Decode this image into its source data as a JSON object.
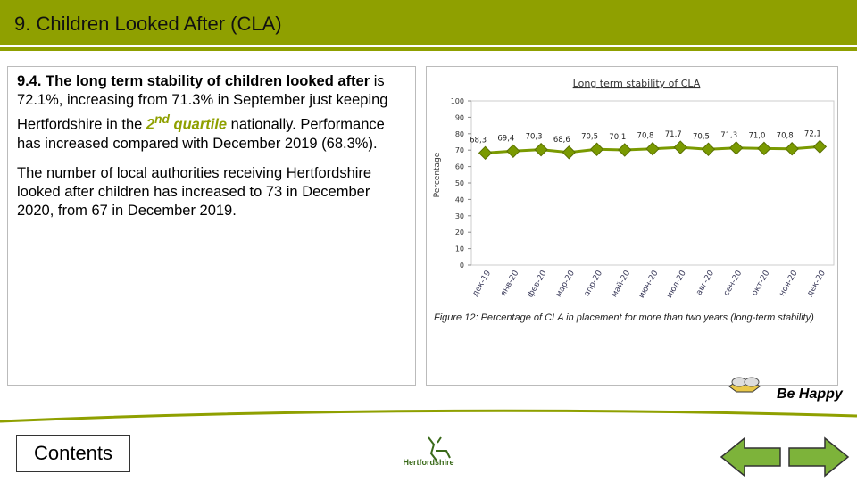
{
  "header": {
    "title": "9. Children Looked After (CLA)"
  },
  "text": {
    "p1": [
      "9.4. The long term stability of children looked after",
      " is 72.1%, increasing from 71.3% in September just keeping Hertfordshire in the ",
      "2",
      "nd",
      " quartile",
      " nationally. Performance has increased compared with December 2019 (68.3%)."
    ],
    "p2": "The number of local authorities receiving Hertfordshire looked after children has increased to 73 in December 2020, from 67 in December 2019."
  },
  "chart_data": {
    "type": "line",
    "title": "Long term stability of CLA",
    "y_label": "Percentage",
    "categories": [
      "дек-19",
      "янв-20",
      "фев-20",
      "мар-20",
      "апр-20",
      "май-20",
      "июн-20",
      "июл-20",
      "авг-20",
      "сен-20",
      "окт-20",
      "ноя-20",
      "дек-20"
    ],
    "values": [
      68.3,
      69.4,
      70.3,
      68.6,
      70.5,
      70.1,
      70.8,
      71.7,
      70.5,
      71.3,
      71.0,
      70.8,
      72.1
    ],
    "value_labels": [
      "68,3",
      "69,4",
      "70,3",
      "68,6",
      "70,5",
      "70,1",
      "70,8",
      "71,7",
      "70,5",
      "71,3",
      "71,0",
      "70,8",
      "72,1"
    ],
    "color": "#7a9a01",
    "ylim": [
      0,
      100
    ],
    "yticks": [
      0,
      10,
      20,
      30,
      40,
      50,
      60,
      70,
      80,
      90,
      100
    ]
  },
  "caption": "Figure 12: Percentage of CLA in placement for more than two years (long-term stability)",
  "be_happy": "Be Happy",
  "contents": "Contents",
  "logo": "Hertfordshire"
}
